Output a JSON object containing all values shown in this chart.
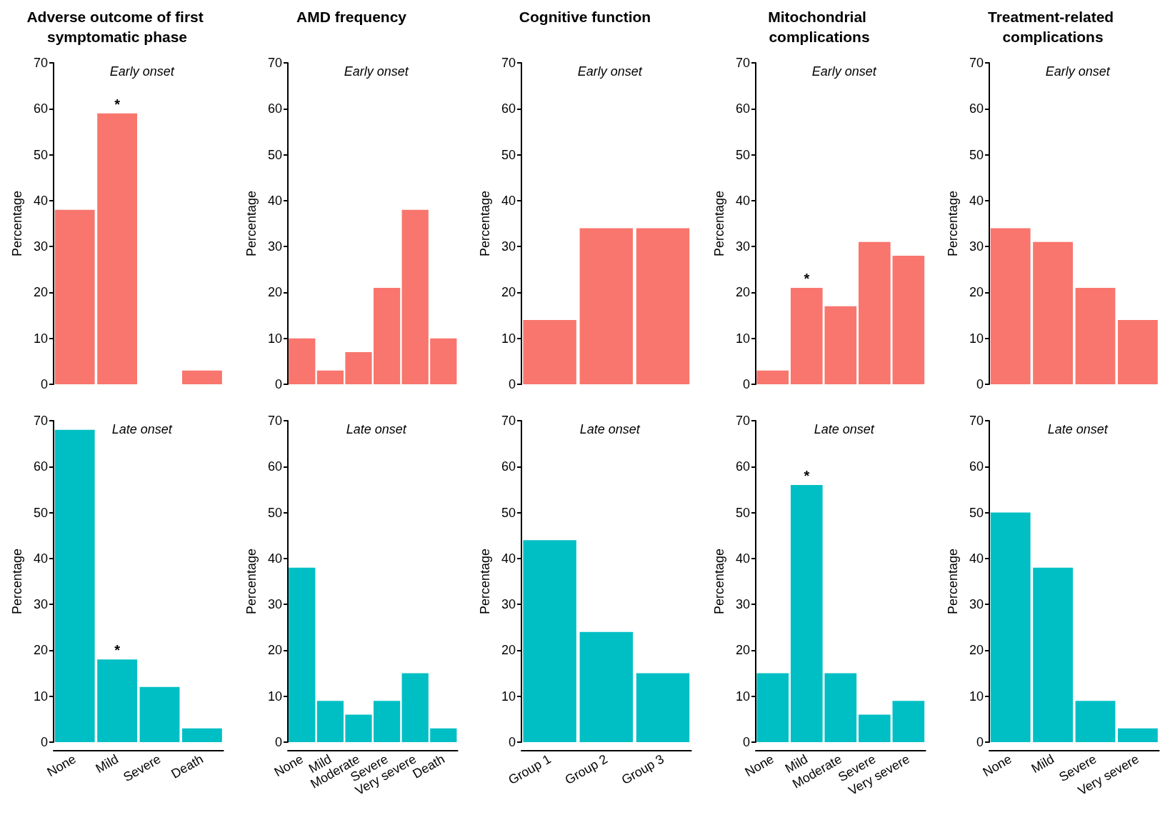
{
  "chart_data": [
    {
      "type": "bar",
      "title": "Adverse outcome of first symptomatic phase",
      "subtitle": "Early onset",
      "ylabel": "Percentage",
      "categories": [
        "None",
        "Mild",
        "Severe",
        "Death"
      ],
      "values": [
        38,
        59,
        0,
        3
      ],
      "color": "#f8766d",
      "ylim": [
        0,
        70
      ],
      "yticks": [
        0,
        10,
        20,
        30,
        40,
        50,
        60,
        70
      ],
      "tick_labels": "y",
      "annotations": [
        {
          "text": "*",
          "x": "Mild",
          "y": 59
        }
      ]
    },
    {
      "type": "bar",
      "title": "AMD frequency",
      "subtitle": "Early onset",
      "ylabel": "Percentage",
      "categories": [
        "None",
        "Mild",
        "Moderate",
        "Severe",
        "Very severe",
        "Death"
      ],
      "values": [
        10,
        3,
        7,
        21,
        38,
        10
      ],
      "color": "#f8766d",
      "ylim": [
        0,
        70
      ],
      "yticks": [
        0,
        10,
        20,
        30,
        40,
        50,
        60,
        70
      ],
      "tick_labels": "y"
    },
    {
      "type": "bar",
      "title": "Cognitive function",
      "subtitle": "Early onset",
      "ylabel": "Percentage",
      "categories": [
        "Group 1",
        "Group 2",
        "Group 3"
      ],
      "values": [
        14,
        34,
        34
      ],
      "color": "#f8766d",
      "ylim": [
        0,
        70
      ],
      "yticks": [
        0,
        10,
        20,
        30,
        40,
        50,
        60,
        70
      ],
      "tick_labels": "y"
    },
    {
      "type": "bar",
      "title": "Mitochondrial complications",
      "subtitle": "Early onset",
      "ylabel": "Percentage",
      "categories": [
        "None",
        "Mild",
        "Moderate",
        "Severe",
        "Very severe"
      ],
      "values": [
        3,
        21,
        17,
        31,
        28
      ],
      "color": "#f8766d",
      "ylim": [
        0,
        70
      ],
      "yticks": [
        0,
        10,
        20,
        30,
        40,
        50,
        60,
        70
      ],
      "tick_labels": "y",
      "annotations": [
        {
          "text": "*",
          "x": "Mild",
          "y": 21
        }
      ]
    },
    {
      "type": "bar",
      "title": "Treatment-related complications",
      "subtitle": "Early onset",
      "ylabel": "Percentage",
      "categories": [
        "None",
        "Mild",
        "Severe",
        "Very severe"
      ],
      "values": [
        34,
        31,
        21,
        14
      ],
      "color": "#f8766d",
      "ylim": [
        0,
        70
      ],
      "yticks": [
        0,
        10,
        20,
        30,
        40,
        50,
        60,
        70
      ],
      "tick_labels": "y"
    },
    {
      "type": "bar",
      "subtitle": "Late onset",
      "ylabel": "Percentage",
      "categories": [
        "None",
        "Mild",
        "Severe",
        "Death"
      ],
      "values": [
        68,
        18,
        12,
        3
      ],
      "color": "#00bfc4",
      "ylim": [
        0,
        70
      ],
      "yticks": [
        0,
        10,
        20,
        30,
        40,
        50,
        60,
        70
      ],
      "annotations": [
        {
          "text": "*",
          "x": "Mild",
          "y": 18
        }
      ]
    },
    {
      "type": "bar",
      "subtitle": "Late onset",
      "ylabel": "Percentage",
      "categories": [
        "None",
        "Mild",
        "Moderate",
        "Severe",
        "Very severe",
        "Death"
      ],
      "values": [
        38,
        9,
        6,
        9,
        15,
        3
      ],
      "color": "#00bfc4",
      "ylim": [
        0,
        70
      ],
      "yticks": [
        0,
        10,
        20,
        30,
        40,
        50,
        60,
        70
      ]
    },
    {
      "type": "bar",
      "subtitle": "Late onset",
      "ylabel": "Percentage",
      "categories": [
        "Group 1",
        "Group 2",
        "Group 3"
      ],
      "values": [
        44,
        24,
        15
      ],
      "color": "#00bfc4",
      "ylim": [
        0,
        70
      ],
      "yticks": [
        0,
        10,
        20,
        30,
        40,
        50,
        60,
        70
      ]
    },
    {
      "type": "bar",
      "subtitle": "Late onset",
      "ylabel": "Percentage",
      "categories": [
        "None",
        "Mild",
        "Moderate",
        "Severe",
        "Very severe"
      ],
      "values": [
        15,
        56,
        15,
        6,
        9
      ],
      "color": "#00bfc4",
      "ylim": [
        0,
        70
      ],
      "yticks": [
        0,
        10,
        20,
        30,
        40,
        50,
        60,
        70
      ],
      "annotations": [
        {
          "text": "*",
          "x": "Mild",
          "y": 56
        }
      ]
    },
    {
      "type": "bar",
      "subtitle": "Late onset",
      "ylabel": "Percentage",
      "categories": [
        "None",
        "Mild",
        "Severe",
        "Very severe"
      ],
      "values": [
        50,
        38,
        9,
        3
      ],
      "color": "#00bfc4",
      "ylim": [
        0,
        70
      ],
      "yticks": [
        0,
        10,
        20,
        30,
        40,
        50,
        60,
        70
      ]
    }
  ]
}
